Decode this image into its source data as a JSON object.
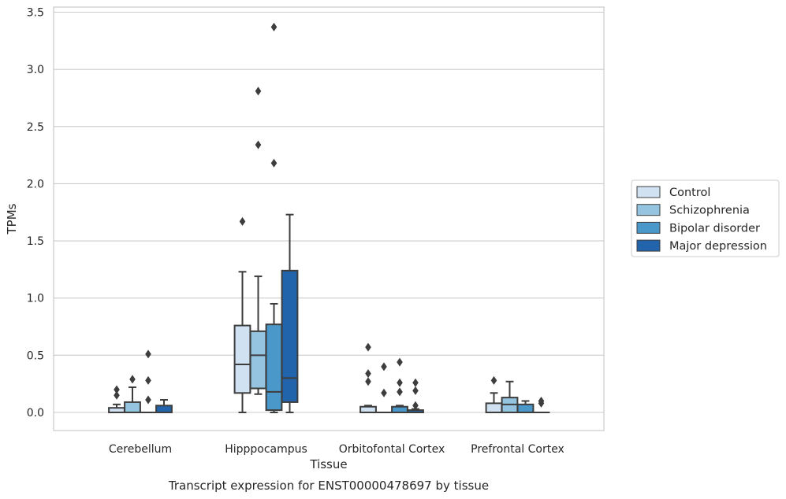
{
  "chart_data": {
    "type": "box",
    "title": "Transcript expression for ENST00000478697 by tissue",
    "xlabel": "Tissue",
    "ylabel": "TPMs",
    "ylim": [
      -0.16,
      3.55
    ],
    "yticks": [
      0.0,
      0.5,
      1.0,
      1.5,
      2.0,
      2.5,
      3.0,
      3.5
    ],
    "ytick_labels": [
      "0.0",
      "0.5",
      "1.0",
      "1.5",
      "2.0",
      "2.5",
      "3.0",
      "3.5"
    ],
    "grid": "horizontal",
    "legend_position": "right",
    "categories": [
      "Cerebellum",
      "Hipppocampus",
      "Orbitofontal Cortex",
      "Prefrontal Cortex"
    ],
    "series": [
      {
        "name": "Control",
        "color": "#d0e1f2",
        "boxes": [
          {
            "whislo": 0,
            "q1": 0,
            "med": 0,
            "q3": 0.04,
            "whishi": 0.07,
            "fliers": [
              0.15,
              0.2
            ]
          },
          {
            "whislo": 0,
            "q1": 0.17,
            "med": 0.42,
            "q3": 0.76,
            "whishi": 1.23,
            "fliers": [
              1.67
            ]
          },
          {
            "whislo": 0,
            "q1": 0,
            "med": 0,
            "q3": 0.05,
            "whishi": 0.06,
            "fliers": [
              0.27,
              0.34,
              0.57
            ]
          },
          {
            "whislo": 0,
            "q1": 0,
            "med": 0,
            "q3": 0.08,
            "whishi": 0.17,
            "fliers": [
              0.28
            ]
          }
        ]
      },
      {
        "name": "Schizophrenia",
        "color": "#94c4df",
        "boxes": [
          {
            "whislo": 0,
            "q1": 0,
            "med": 0,
            "q3": 0.09,
            "whishi": 0.22,
            "fliers": [
              0.29
            ]
          },
          {
            "whislo": 0.16,
            "q1": 0.21,
            "med": 0.5,
            "q3": 0.71,
            "whishi": 1.19,
            "fliers": [
              2.34,
              2.81
            ]
          },
          {
            "whislo": 0,
            "q1": 0,
            "med": 0,
            "q3": 0,
            "whishi": 0,
            "fliers": [
              0.17,
              0.4
            ]
          },
          {
            "whislo": 0,
            "q1": 0,
            "med": 0.07,
            "q3": 0.13,
            "whishi": 0.27,
            "fliers": []
          }
        ]
      },
      {
        "name": "Bipolar disorder",
        "color": "#4a98c9",
        "boxes": [
          {
            "whislo": 0,
            "q1": 0,
            "med": 0,
            "q3": 0,
            "whishi": 0,
            "fliers": [
              0.11,
              0.28,
              0.51
            ]
          },
          {
            "whislo": 0,
            "q1": 0.02,
            "med": 0.18,
            "q3": 0.77,
            "whishi": 0.95,
            "fliers": [
              2.18,
              3.37
            ]
          },
          {
            "whislo": 0,
            "q1": 0,
            "med": 0,
            "q3": 0.05,
            "whishi": 0.06,
            "fliers": [
              0.18,
              0.26,
              0.44
            ]
          },
          {
            "whislo": 0,
            "q1": 0,
            "med": 0,
            "q3": 0.07,
            "whishi": 0.1,
            "fliers": []
          }
        ]
      },
      {
        "name": "Major depression",
        "color": "#2164ab",
        "boxes": [
          {
            "whislo": 0,
            "q1": 0,
            "med": 0,
            "q3": 0.06,
            "whishi": 0.11,
            "fliers": []
          },
          {
            "whislo": 0,
            "q1": 0.09,
            "med": 0.3,
            "q3": 1.24,
            "whishi": 1.73,
            "fliers": []
          },
          {
            "whislo": 0,
            "q1": 0,
            "med": 0,
            "q3": 0.02,
            "whishi": 0.03,
            "fliers": [
              0.06,
              0.19,
              0.26
            ]
          },
          {
            "whislo": 0,
            "q1": 0,
            "med": 0,
            "q3": 0,
            "whishi": 0,
            "fliers": [
              0.08,
              0.1
            ]
          }
        ]
      }
    ]
  }
}
